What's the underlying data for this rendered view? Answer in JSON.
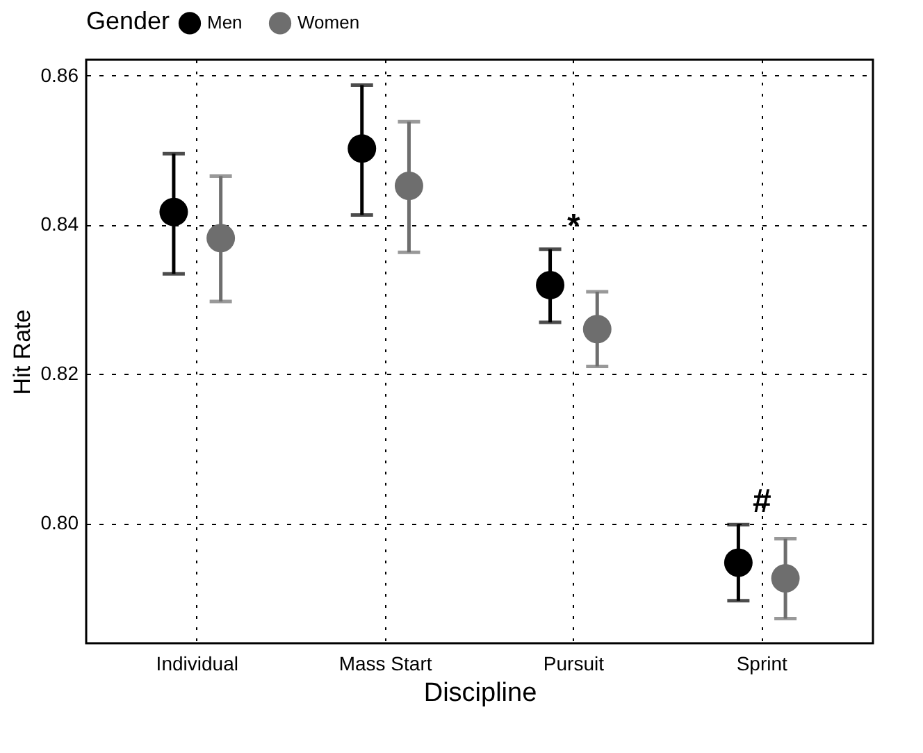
{
  "chart_data": {
    "type": "scatter",
    "xlabel": "Discipline",
    "ylabel": "Hit Rate",
    "legend_title": "Gender",
    "categories": [
      "Individual",
      "Mass Start",
      "Pursuit",
      "Sprint"
    ],
    "series": [
      {
        "name": "Men",
        "color": "#000000",
        "values": [
          0.8417,
          0.8502,
          0.8319,
          0.7947
        ],
        "errors": [
          [
            0.8334,
            0.8495
          ],
          [
            0.8413,
            0.8587
          ],
          [
            0.8269,
            0.8367
          ],
          [
            0.7896,
            0.7998
          ]
        ]
      },
      {
        "name": "Women",
        "color": "#6e6e6e",
        "values": [
          0.8382,
          0.8452,
          0.826,
          0.7926
        ],
        "errors": [
          [
            0.8297,
            0.8465
          ],
          [
            0.8363,
            0.8538
          ],
          [
            0.821,
            0.831
          ],
          [
            0.7872,
            0.7979
          ]
        ]
      }
    ],
    "ylim": [
      0.7839,
      0.8621
    ],
    "yticks": [
      {
        "value": 0.8,
        "label": "0.80"
      },
      {
        "value": 0.82,
        "label": "0.82"
      },
      {
        "value": 0.84,
        "label": "0.84"
      },
      {
        "value": 0.86,
        "label": "0.86"
      }
    ],
    "grid": true,
    "legend": "top",
    "marker": "circle",
    "annotations": [
      "*",
      "#"
    ]
  }
}
